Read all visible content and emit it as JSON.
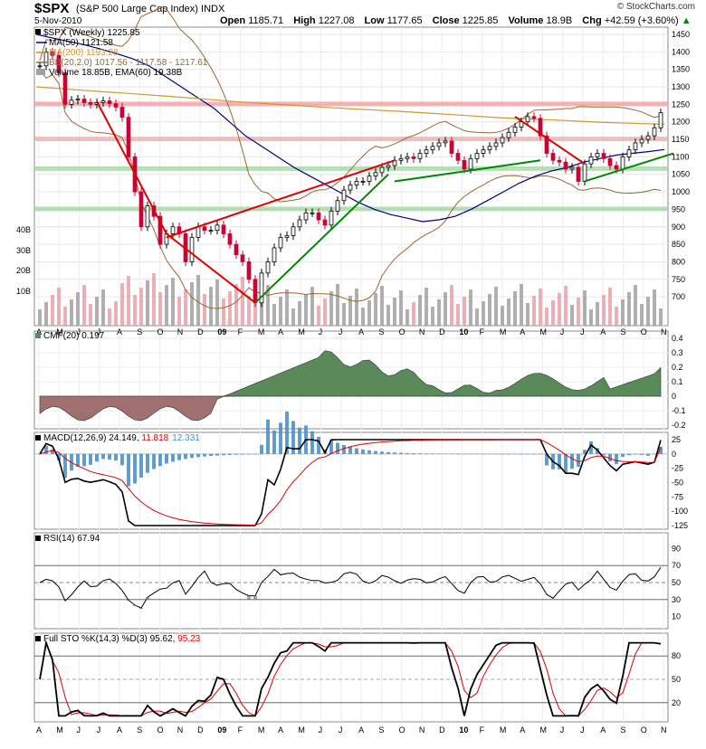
{
  "header": {
    "symbol": "$SPX",
    "name": "(S&P 500 Large Cap Index)",
    "exchange": "INDX",
    "date": "5-Nov-2010",
    "open_label": "Open",
    "open": "1185.71",
    "high_label": "High",
    "high": "1227.08",
    "low_label": "Low",
    "low": "1177.65",
    "close_label": "Close",
    "close": "1225.85",
    "volume_label": "Volume",
    "volume": "18.9B",
    "chg_label": "Chg",
    "chg": "+42.59 (+3.60%)",
    "chg_arrow": "▲",
    "brand": "© StockCharts.com"
  },
  "colors": {
    "up": "#000000",
    "down": "#cc0033",
    "ma50": "#000080",
    "ma200": "#cc9933",
    "bb": "#996633",
    "cmf_pos": "#5a8a5a",
    "cmf_neg": "#a07070",
    "macd_hist": "#4a90c8",
    "red_line": "#dd0000",
    "green_line": "#008800",
    "vol_down": "#e8a0a8",
    "vol_up": "#a0a0a0"
  },
  "legends": {
    "price": "$SPX (Weekly) 1225.85",
    "ma50": "MA(50) 1121.58",
    "ma200": "MA(200) 1193.28",
    "bb": "BB(20,2.0) 1017.56 - 1117.58 - 1217.61",
    "volume": "Volume 18.85B, EMA(60) 19.38B",
    "cmf": "CMF(20) 0.197",
    "macd_prefix": "MACD(12,26,9) 24.149, ",
    "macd_signal": "11.818",
    "macd_hist": "12.331",
    "rsi": "RSI(14) 67.94",
    "sto_prefix": "Full STO %K(14,3) %D(3) 95.62, ",
    "sto_d": "95.23"
  },
  "chart_data": {
    "type": "line",
    "timeframe": "weekly",
    "price_axis": {
      "ticks": [
        1450,
        1400,
        1350,
        1300,
        1250,
        1200,
        1150,
        1100,
        1050,
        1000,
        950,
        900,
        850,
        800,
        750,
        700
      ]
    },
    "volume_axis": {
      "ticks": [
        "40B",
        "30B",
        "20B",
        "10B"
      ]
    },
    "x_axis": {
      "ticks": [
        "A",
        "M",
        "J",
        "J",
        "A",
        "S",
        "O",
        "N",
        "D",
        "09",
        "F",
        "M",
        "A",
        "M",
        "J",
        "J",
        "A",
        "S",
        "O",
        "N",
        "D",
        "10",
        "F",
        "M",
        "A",
        "M",
        "J",
        "J",
        "A",
        "S",
        "O",
        "N"
      ]
    },
    "price_close": [
      1360,
      1400,
      1390,
      1340,
      1250,
      1262,
      1265,
      1255,
      1250,
      1255,
      1260,
      1252,
      1242,
      1213,
      1100,
      1000,
      900,
      960,
      930,
      850,
      880,
      900,
      880,
      800,
      870,
      900,
      890,
      890,
      905,
      880,
      850,
      820,
      800,
      750,
      683,
      768,
      800,
      840,
      870,
      875,
      900,
      920,
      940,
      940,
      920,
      905,
      945,
      975,
      1005,
      1020,
      1030,
      1030,
      1045,
      1055,
      1070,
      1075,
      1090,
      1095,
      1100,
      1095,
      1110,
      1120,
      1130,
      1140,
      1145,
      1110,
      1090,
      1065,
      1095,
      1110,
      1120,
      1130,
      1140,
      1155,
      1170,
      1185,
      1200,
      1215,
      1210,
      1160,
      1110,
      1090,
      1085,
      1065,
      1070,
      1030,
      1080,
      1100,
      1110,
      1095,
      1075,
      1065,
      1100,
      1120,
      1140,
      1150,
      1160,
      1183,
      1226
    ],
    "ma50": [
      1450,
      1440,
      1430,
      1420,
      1408,
      1395,
      1380,
      1360,
      1330,
      1300,
      1270,
      1240,
      1200,
      1160,
      1130,
      1100,
      1070,
      1045,
      1020,
      995,
      970,
      950,
      935,
      925,
      915,
      920,
      930,
      950,
      975,
      1000,
      1025,
      1045,
      1060,
      1070,
      1085,
      1095,
      1105,
      1110,
      1115,
      1121
    ],
    "ma200": [
      1300,
      1293,
      1286,
      1280,
      1273,
      1266,
      1258,
      1252,
      1246,
      1240,
      1235,
      1230,
      1224,
      1218,
      1212,
      1208,
      1204,
      1199,
      1196,
      1193
    ],
    "support_levels": [
      1250,
      1150,
      1065,
      950
    ],
    "series": [
      {
        "name": "CMF(20)",
        "last": 0.197,
        "axis": [
          0.4,
          0.3,
          0.2,
          0.1,
          0.0,
          -0.1,
          -0.2
        ]
      },
      {
        "name": "MACD(12,26,9)",
        "last": 24.149,
        "signal": 11.818,
        "histogram": 12.331,
        "axis": [
          25,
          0,
          -25,
          -50,
          -75,
          -100,
          -125
        ]
      },
      {
        "name": "RSI(14)",
        "last": 67.94,
        "axis": [
          90,
          70,
          50,
          30,
          10
        ]
      },
      {
        "name": "Full STO %K(14,3) %D(3)",
        "last": 95.62,
        "d": 95.23,
        "axis": [
          80,
          50,
          20
        ]
      }
    ]
  }
}
